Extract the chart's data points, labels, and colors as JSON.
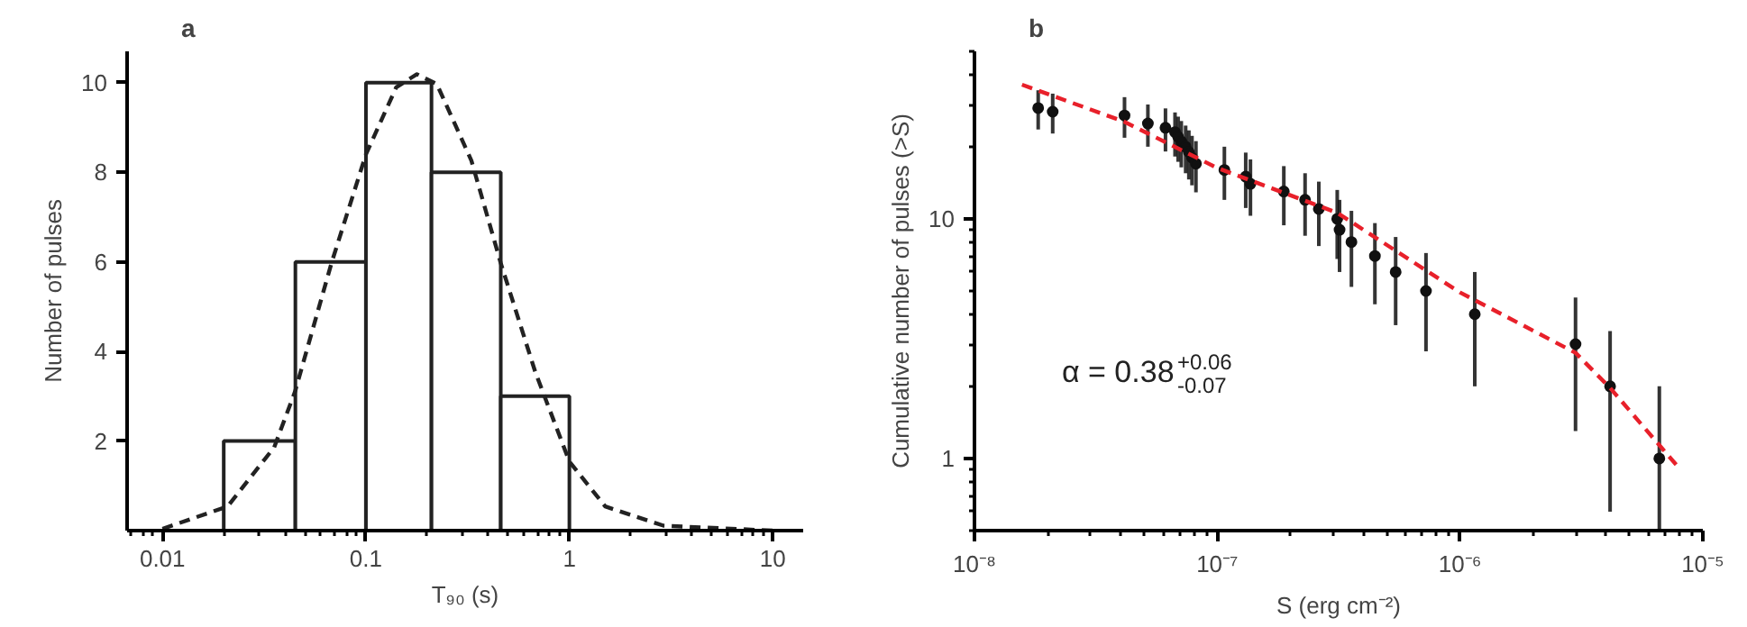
{
  "chart_data": [
    {
      "type": "histogram",
      "title": "a",
      "xlabel": "T₉₀ (s)",
      "ylabel": "Number of pulses",
      "log": "x",
      "bins": [
        0.02,
        0.045,
        0.1,
        0.21,
        0.46,
        1
      ],
      "values": [
        2,
        6,
        10,
        8,
        3
      ],
      "color": "#222222",
      "xlim": [
        0.0067,
        14.1
      ],
      "ylim": [
        0,
        10.7
      ],
      "xticks": [
        0.01,
        0.1,
        1,
        10
      ],
      "yticks": [
        2,
        4,
        6,
        8,
        10
      ],
      "series": [
        {
          "type": "line",
          "color": "#222222",
          "line_style": "dashed",
          "x": [
            0.01,
            0.0209,
            0.0354,
            0.0448,
            0.068,
            0.1,
            0.141,
            0.178,
            0.223,
            0.33,
            0.46,
            0.68,
            1,
            1.5,
            2.9,
            10
          ],
          "values": [
            0.04,
            0.54,
            1.86,
            3.1,
            6.0,
            8.4,
            9.9,
            10.19,
            9.97,
            8.26,
            5.97,
            3.54,
            1.54,
            0.54,
            0.11,
            0
          ]
        }
      ]
    },
    {
      "type": "scatter",
      "title": "b",
      "xlabel": "S (erg cm⁻²)",
      "ylabel": "Cumulative number of pulses (>S)",
      "log": "xy",
      "xlim": [
        1e-08,
        1e-05
      ],
      "ylim": [
        0.5,
        50
      ],
      "xticks": [
        {
          "value": 1e-08,
          "label": "10⁻⁸"
        },
        {
          "value": 1e-07,
          "label": "10⁻⁷"
        },
        {
          "value": 1e-06,
          "label": "10⁻⁶"
        },
        {
          "value": 1e-05,
          "label": "10⁻⁵"
        }
      ],
      "yticks": [
        1,
        10
      ],
      "annotations": [
        {
          "text": "α = 0.38$^{+0.06}$$_{-0.07}$"
        }
      ],
      "series": [
        {
          "type": "scatter",
          "marker": "circle",
          "color": "#111111",
          "x": [
            1.83e-08,
            2.1e-08,
            4.15e-08,
            5.18e-08,
            6.12e-08,
            6.7e-08,
            6.9e-08,
            7.11e-08,
            7.41e-08,
            7.64e-08,
            7.87e-08,
            8.17e-08,
            1.07e-07,
            1.31e-07,
            1.37e-07,
            1.88e-07,
            2.3e-07,
            2.62e-07,
            3.12e-07,
            3.19e-07,
            3.57e-07,
            4.46e-07,
            5.43e-07,
            7.24e-07,
            1.15e-06,
            2.99e-06,
            4.15e-06,
            6.62e-06
          ],
          "values": [
            29,
            28,
            27,
            25,
            24,
            23,
            22,
            21,
            20,
            19,
            18,
            17,
            16,
            15,
            14,
            13,
            12,
            11,
            10,
            9,
            8,
            7,
            6,
            5,
            4,
            3,
            2,
            1
          ],
          "errors": [
            5.4,
            5.3,
            5.2,
            5,
            4.9,
            4.8,
            4.7,
            4.6,
            4.5,
            4.4,
            4.2,
            4.1,
            4,
            3.9,
            3.7,
            3.6,
            3.5,
            3.3,
            3.2,
            3,
            2.8,
            2.6,
            2.4,
            2.2,
            2,
            1.7,
            1.4,
            [
              0.5,
              2
            ]
          ]
        },
        {
          "type": "line",
          "color": "#e8202a",
          "line_style": "dashed",
          "x": [
            1.57e-08,
            4.15e-08,
            1e-07,
            3.12e-07,
            1e-06,
            2.99e-06,
            4.15e-06,
            7.78e-06
          ],
          "values": [
            36.3,
            25.4,
            16.3,
            10.6,
            4.93,
            2.76,
            1.97,
            0.94
          ]
        }
      ]
    }
  ]
}
